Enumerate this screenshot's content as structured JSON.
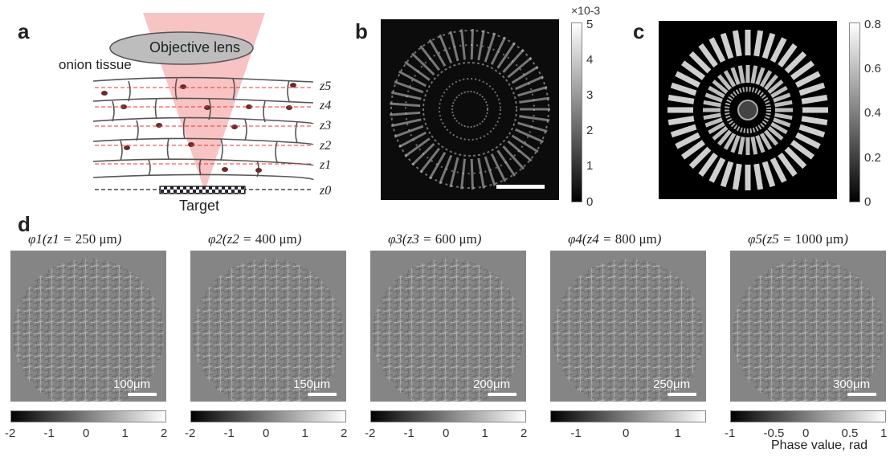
{
  "panels": {
    "a": {
      "letter": "a",
      "objective_label": "Objective lens",
      "tissue_label": "onion tissue",
      "target_label": "Target",
      "z_labels": [
        "z5",
        "z4",
        "z3",
        "z2",
        "z1",
        "z0"
      ]
    },
    "b": {
      "letter": "b",
      "colorbar": {
        "ticks": [
          "5",
          "4",
          "3",
          "2",
          "1",
          "0"
        ],
        "exponent": "×10-3"
      }
    },
    "c": {
      "letter": "c",
      "colorbar": {
        "ticks": [
          "0.8",
          "0.6",
          "0.4",
          "0.2",
          "0"
        ]
      }
    },
    "d": {
      "letter": "d",
      "subplots": [
        {
          "phi": "φ1",
          "z": "z1",
          "value": "250",
          "unit": "μm",
          "scale": "100μm",
          "ticks": [
            "-2",
            "-1",
            "0",
            "1",
            "2"
          ]
        },
        {
          "phi": "φ2",
          "z": "z2",
          "value": "400",
          "unit": "μm",
          "scale": "150μm",
          "ticks": [
            "-2",
            "-1",
            "0",
            "1",
            "2"
          ]
        },
        {
          "phi": "φ3",
          "z": "z3",
          "value": "600",
          "unit": "μm",
          "scale": "200μm",
          "ticks": [
            "-2",
            "-1",
            "0",
            "1",
            "2"
          ]
        },
        {
          "phi": "φ4",
          "z": "z4",
          "value": "800",
          "unit": "μm",
          "scale": "250μm",
          "ticks": [
            "-1",
            "0",
            "1"
          ]
        },
        {
          "phi": "φ5",
          "z": "z5",
          "value": "1000",
          "unit": "μm",
          "scale": "300μm",
          "ticks": [
            "-1",
            "-0.5",
            "0",
            "0.5",
            "1"
          ]
        }
      ],
      "axis_label": "Phase value, rad"
    }
  }
}
